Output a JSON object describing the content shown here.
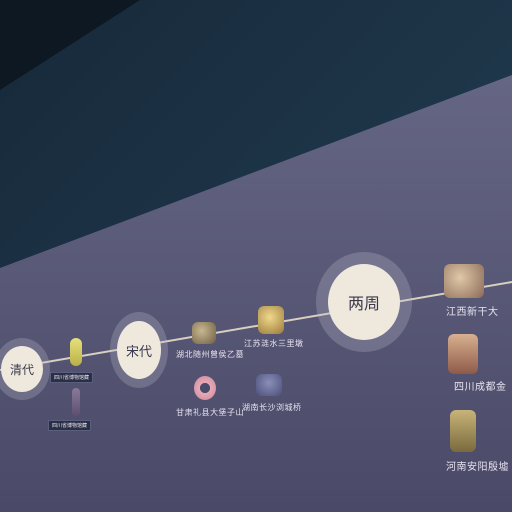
{
  "eras": [
    {
      "label": "清代"
    },
    {
      "label": "宋代"
    },
    {
      "label": "两周"
    }
  ],
  "captions": {
    "song_1": "湖北随州曾侯乙墓",
    "song_2": "江苏涟水三里墩",
    "song_3": "甘肃礼县大堡子山",
    "song_4": "湖南长沙浏城桥",
    "zhou_1": "江西新干大",
    "zhou_2": "四川成都金",
    "zhou_3": "河南安阳殷墟"
  },
  "tags": {
    "qing_1": "四川省博物馆藏",
    "qing_2": "四川省博物馆藏"
  },
  "colors": {
    "wall": "#5a5a7a",
    "wall_top": "#1f3346",
    "disc": "#efe8dd",
    "timeline": "#d8d0c0"
  }
}
